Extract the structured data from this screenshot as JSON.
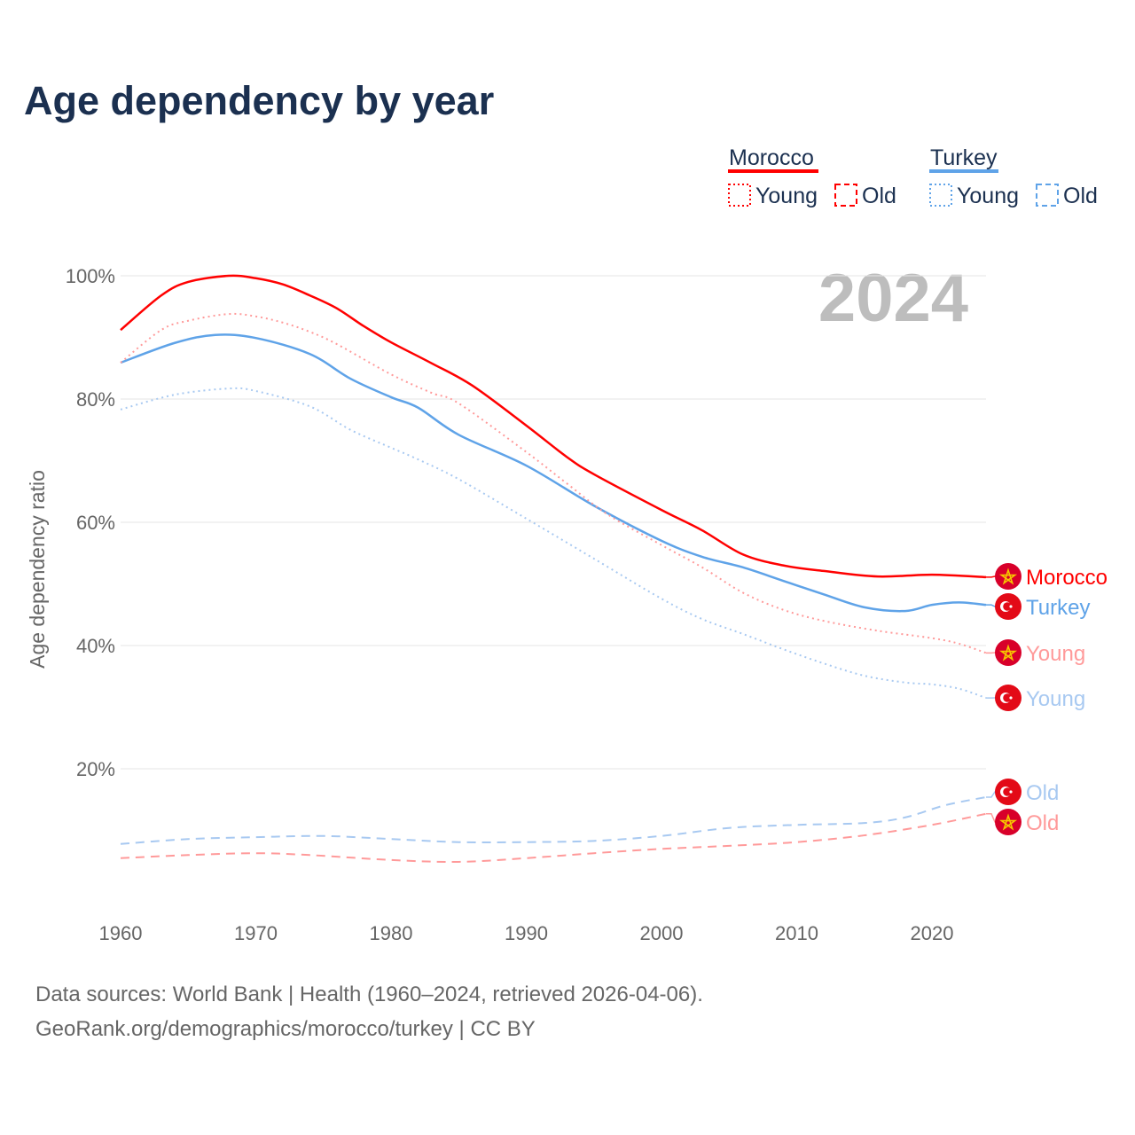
{
  "title": "Age dependency by year",
  "legend": {
    "groups": [
      {
        "name": "Morocco",
        "color": "#ff0000",
        "items": [
          "Young",
          "Old"
        ]
      },
      {
        "name": "Turkey",
        "color": "#5fa3e8",
        "items": [
          "Young",
          "Old"
        ]
      }
    ]
  },
  "year_watermark": "2024",
  "footer": {
    "line1": "Data sources: World Bank | Health (1960–2024, retrieved 2026-04-06).",
    "line2": "GeoRank.org/demographics/morocco/turkey | CC BY"
  },
  "chart_data": {
    "type": "line",
    "title": "Age dependency by year",
    "xlabel": "",
    "ylabel": "Age dependency ratio",
    "xlim": [
      1960,
      2024
    ],
    "ylim": [
      0,
      100
    ],
    "xticks": [
      1960,
      1970,
      1980,
      1990,
      2000,
      2010,
      2020
    ],
    "yticks": [
      20,
      40,
      60,
      80,
      100
    ],
    "ytick_labels": [
      "20%",
      "40%",
      "60%",
      "80%",
      "100%"
    ],
    "grid": true,
    "series": [
      {
        "name": "Morocco",
        "label": "Morocco",
        "country": "Morocco",
        "style": "solid",
        "color": "#ff0000",
        "points": [
          [
            1960,
            91.2
          ],
          [
            1963,
            96.8
          ],
          [
            1965,
            99
          ],
          [
            1968,
            100
          ],
          [
            1970,
            99.6
          ],
          [
            1972,
            98.6
          ],
          [
            1974,
            96.8
          ],
          [
            1976,
            94.7
          ],
          [
            1978,
            91.8
          ],
          [
            1980,
            89.2
          ],
          [
            1983,
            85.8
          ],
          [
            1986,
            82.2
          ],
          [
            1990,
            75.7
          ],
          [
            1993,
            70.6
          ],
          [
            1995,
            67.8
          ],
          [
            2000,
            62
          ],
          [
            2003,
            58.7
          ],
          [
            2006,
            54.8
          ],
          [
            2009,
            53
          ],
          [
            2012,
            52.1
          ],
          [
            2016,
            51.2
          ],
          [
            2020,
            51.5
          ],
          [
            2024,
            51.1
          ]
        ]
      },
      {
        "name": "Turkey",
        "label": "Turkey",
        "country": "Turkey",
        "style": "solid",
        "color": "#5fa3e8",
        "points": [
          [
            1960,
            85.9
          ],
          [
            1964,
            89.1
          ],
          [
            1967,
            90.4
          ],
          [
            1970,
            89.9
          ],
          [
            1974,
            87.3
          ],
          [
            1977,
            83.3
          ],
          [
            1980,
            80.3
          ],
          [
            1982,
            78.6
          ],
          [
            1985,
            74.2
          ],
          [
            1990,
            69.2
          ],
          [
            1995,
            62.7
          ],
          [
            2000,
            57
          ],
          [
            2003,
            54.4
          ],
          [
            2006,
            52.7
          ],
          [
            2009,
            50.5
          ],
          [
            2012,
            48.3
          ],
          [
            2015,
            46.2
          ],
          [
            2018,
            45.6
          ],
          [
            2020,
            46.6
          ],
          [
            2022,
            47
          ],
          [
            2024,
            46.6
          ]
        ]
      },
      {
        "name": "Morocco Young",
        "label": "Young",
        "country": "Morocco",
        "style": "dotted",
        "color": "#ff9a9a",
        "points": [
          [
            1960,
            85.9
          ],
          [
            1963,
            91.2
          ],
          [
            1965,
            92.7
          ],
          [
            1968,
            93.8
          ],
          [
            1970,
            93.4
          ],
          [
            1972,
            92.4
          ],
          [
            1974,
            90.9
          ],
          [
            1976,
            88.9
          ],
          [
            1980,
            84
          ],
          [
            1983,
            81
          ],
          [
            1985,
            79.3
          ],
          [
            1990,
            71.4
          ],
          [
            1993,
            66.3
          ],
          [
            1996,
            61.3
          ],
          [
            2000,
            56.3
          ],
          [
            2003,
            52.7
          ],
          [
            2006,
            48.6
          ],
          [
            2009,
            45.8
          ],
          [
            2012,
            44
          ],
          [
            2016,
            42.4
          ],
          [
            2020,
            41.2
          ],
          [
            2022,
            40.3
          ],
          [
            2024,
            38.8
          ]
        ]
      },
      {
        "name": "Turkey Young",
        "label": "Young",
        "country": "Turkey",
        "style": "dotted",
        "color": "#a8c9f1",
        "points": [
          [
            1960,
            78.3
          ],
          [
            1964,
            80.7
          ],
          [
            1968,
            81.7
          ],
          [
            1970,
            81.3
          ],
          [
            1974,
            78.8
          ],
          [
            1977,
            75
          ],
          [
            1980,
            72.1
          ],
          [
            1982,
            70.2
          ],
          [
            1985,
            67
          ],
          [
            1990,
            60.6
          ],
          [
            1995,
            54.1
          ],
          [
            2000,
            47.6
          ],
          [
            2003,
            44.3
          ],
          [
            2006,
            41.9
          ],
          [
            2009,
            39.4
          ],
          [
            2012,
            37.1
          ],
          [
            2015,
            35.1
          ],
          [
            2018,
            34
          ],
          [
            2020,
            33.7
          ],
          [
            2022,
            33
          ],
          [
            2024,
            31.5
          ]
        ]
      },
      {
        "name": "Turkey Old",
        "label": "Old",
        "country": "Turkey",
        "style": "dashed",
        "color": "#a8c9f1",
        "points": [
          [
            1960,
            7.8
          ],
          [
            1965,
            8.6
          ],
          [
            1970,
            8.9
          ],
          [
            1975,
            9.1
          ],
          [
            1980,
            8.6
          ],
          [
            1985,
            8.1
          ],
          [
            1990,
            8.1
          ],
          [
            1995,
            8.3
          ],
          [
            2000,
            9.1
          ],
          [
            2005,
            10.4
          ],
          [
            2010,
            10.9
          ],
          [
            2015,
            11.2
          ],
          [
            2018,
            12.1
          ],
          [
            2021,
            14.1
          ],
          [
            2024,
            15.4
          ]
        ]
      },
      {
        "name": "Morocco Old",
        "label": "Old",
        "country": "Morocco",
        "style": "dashed",
        "color": "#ff9a9a",
        "points": [
          [
            1960,
            5.5
          ],
          [
            1965,
            6
          ],
          [
            1970,
            6.3
          ],
          [
            1974,
            6
          ],
          [
            1980,
            5.2
          ],
          [
            1985,
            4.9
          ],
          [
            1990,
            5.5
          ],
          [
            1995,
            6.3
          ],
          [
            2000,
            7
          ],
          [
            2005,
            7.5
          ],
          [
            2010,
            8.1
          ],
          [
            2015,
            9.2
          ],
          [
            2020,
            10.9
          ],
          [
            2024,
            12.7
          ]
        ]
      }
    ]
  }
}
